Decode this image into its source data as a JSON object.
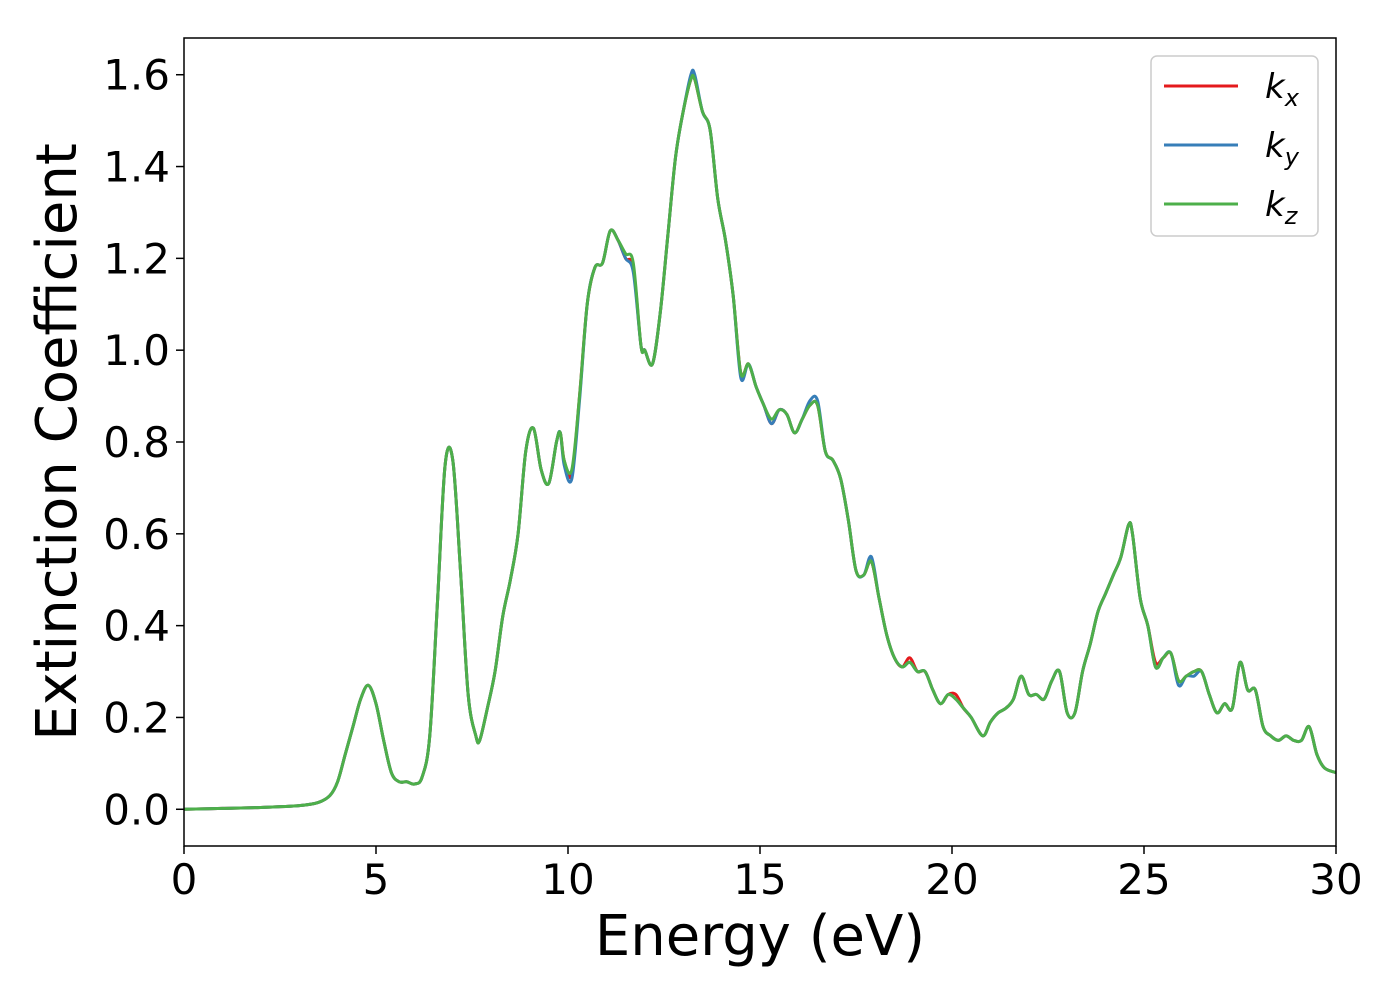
{
  "chart_data": {
    "type": "line",
    "title": "",
    "xlabel": "Energy (eV)",
    "ylabel": "Extinction Coefficient",
    "xlim": [
      0,
      30
    ],
    "ylim": [
      -0.08,
      1.68
    ],
    "xticks": [
      0,
      5,
      10,
      15,
      20,
      25,
      30
    ],
    "yticks": [
      0.0,
      0.2,
      0.4,
      0.6,
      0.8,
      1.0,
      1.2,
      1.4,
      1.6
    ],
    "xtick_labels": [
      "0",
      "5",
      "10",
      "15",
      "20",
      "25",
      "30"
    ],
    "ytick_labels": [
      "0.0",
      "0.2",
      "0.4",
      "0.6",
      "0.8",
      "1.0",
      "1.2",
      "1.4",
      "1.6"
    ],
    "grid": false,
    "legend": {
      "placement": "top-right",
      "entries": [
        {
          "base": "k",
          "sub": "x",
          "color": "#e41a1c"
        },
        {
          "base": "k",
          "sub": "y",
          "color": "#377eb8"
        },
        {
          "base": "k",
          "sub": "z",
          "color": "#4daf4a"
        }
      ]
    },
    "series": [
      {
        "name": "kx",
        "color": "#e41a1c",
        "x": [
          0,
          1,
          2,
          3,
          3.5,
          3.8,
          4.0,
          4.2,
          4.4,
          4.6,
          4.8,
          5.0,
          5.2,
          5.4,
          5.6,
          5.8,
          6.0,
          6.2,
          6.4,
          6.6,
          6.8,
          7.0,
          7.2,
          7.4,
          7.6,
          7.7,
          7.9,
          8.1,
          8.3,
          8.5,
          8.7,
          8.9,
          9.1,
          9.3,
          9.5,
          9.7,
          9.8,
          9.9,
          10.1,
          10.3,
          10.5,
          10.7,
          10.9,
          11.1,
          11.3,
          11.5,
          11.7,
          11.9,
          12.0,
          12.2,
          12.4,
          12.6,
          12.8,
          13.0,
          13.2,
          13.3,
          13.5,
          13.7,
          13.9,
          14.1,
          14.3,
          14.5,
          14.7,
          14.9,
          15.1,
          15.3,
          15.5,
          15.7,
          15.9,
          16.1,
          16.3,
          16.5,
          16.7,
          16.9,
          17.1,
          17.3,
          17.5,
          17.7,
          17.9,
          18.1,
          18.3,
          18.5,
          18.7,
          18.9,
          19.1,
          19.3,
          19.5,
          19.7,
          19.9,
          20.1,
          20.3,
          20.5,
          20.8,
          21.0,
          21.2,
          21.4,
          21.6,
          21.8,
          22.0,
          22.2,
          22.4,
          22.6,
          22.8,
          23.0,
          23.2,
          23.4,
          23.6,
          23.8,
          24.0,
          24.2,
          24.4,
          24.6,
          24.7,
          24.9,
          25.1,
          25.3,
          25.5,
          25.7,
          25.9,
          26.1,
          26.3,
          26.5,
          26.7,
          26.9,
          27.1,
          27.3,
          27.5,
          27.7,
          27.9,
          28.1,
          28.3,
          28.5,
          28.7,
          28.9,
          29.1,
          29.3,
          29.5,
          29.7,
          30.0
        ],
        "y": [
          0.0,
          0.002,
          0.004,
          0.008,
          0.015,
          0.03,
          0.06,
          0.12,
          0.18,
          0.24,
          0.27,
          0.23,
          0.15,
          0.08,
          0.06,
          0.06,
          0.055,
          0.07,
          0.16,
          0.45,
          0.75,
          0.76,
          0.52,
          0.25,
          0.16,
          0.15,
          0.22,
          0.3,
          0.42,
          0.5,
          0.6,
          0.78,
          0.83,
          0.74,
          0.71,
          0.8,
          0.82,
          0.76,
          0.73,
          0.9,
          1.1,
          1.18,
          1.19,
          1.26,
          1.24,
          1.2,
          1.18,
          1.01,
          1.0,
          0.97,
          1.08,
          1.25,
          1.42,
          1.52,
          1.59,
          1.59,
          1.52,
          1.48,
          1.33,
          1.24,
          1.12,
          0.95,
          0.97,
          0.92,
          0.88,
          0.84,
          0.87,
          0.86,
          0.82,
          0.85,
          0.88,
          0.88,
          0.78,
          0.76,
          0.72,
          0.63,
          0.52,
          0.51,
          0.54,
          0.46,
          0.38,
          0.33,
          0.31,
          0.33,
          0.3,
          0.3,
          0.26,
          0.23,
          0.25,
          0.25,
          0.22,
          0.2,
          0.16,
          0.19,
          0.21,
          0.22,
          0.24,
          0.29,
          0.25,
          0.25,
          0.24,
          0.28,
          0.3,
          0.21,
          0.21,
          0.3,
          0.36,
          0.43,
          0.47,
          0.51,
          0.55,
          0.62,
          0.6,
          0.46,
          0.4,
          0.32,
          0.33,
          0.34,
          0.28,
          0.29,
          0.3,
          0.3,
          0.25,
          0.21,
          0.23,
          0.22,
          0.32,
          0.26,
          0.26,
          0.18,
          0.16,
          0.15,
          0.16,
          0.15,
          0.15,
          0.18,
          0.12,
          0.09,
          0.08
        ]
      },
      {
        "name": "ky",
        "color": "#377eb8",
        "x": [
          0,
          1,
          2,
          3,
          3.5,
          3.8,
          4.0,
          4.2,
          4.4,
          4.6,
          4.8,
          5.0,
          5.2,
          5.4,
          5.6,
          5.8,
          6.0,
          6.2,
          6.4,
          6.6,
          6.8,
          7.0,
          7.2,
          7.4,
          7.6,
          7.7,
          7.9,
          8.1,
          8.3,
          8.5,
          8.7,
          8.9,
          9.1,
          9.3,
          9.5,
          9.7,
          9.8,
          9.9,
          10.1,
          10.3,
          10.5,
          10.7,
          10.9,
          11.1,
          11.3,
          11.5,
          11.7,
          11.9,
          12.0,
          12.2,
          12.4,
          12.6,
          12.8,
          13.0,
          13.2,
          13.3,
          13.5,
          13.7,
          13.9,
          14.1,
          14.3,
          14.5,
          14.7,
          14.9,
          15.1,
          15.3,
          15.5,
          15.7,
          15.9,
          16.1,
          16.3,
          16.5,
          16.7,
          16.9,
          17.1,
          17.3,
          17.5,
          17.7,
          17.9,
          18.1,
          18.3,
          18.5,
          18.7,
          18.9,
          19.1,
          19.3,
          19.5,
          19.7,
          19.9,
          20.1,
          20.3,
          20.5,
          20.8,
          21.0,
          21.2,
          21.4,
          21.6,
          21.8,
          22.0,
          22.2,
          22.4,
          22.6,
          22.8,
          23.0,
          23.2,
          23.4,
          23.6,
          23.8,
          24.0,
          24.2,
          24.4,
          24.6,
          24.7,
          24.9,
          25.1,
          25.3,
          25.5,
          25.7,
          25.9,
          26.1,
          26.3,
          26.5,
          26.7,
          26.9,
          27.1,
          27.3,
          27.5,
          27.7,
          27.9,
          28.1,
          28.3,
          28.5,
          28.7,
          28.9,
          29.1,
          29.3,
          29.5,
          29.7,
          30.0
        ],
        "y": [
          0.0,
          0.002,
          0.004,
          0.008,
          0.015,
          0.03,
          0.06,
          0.12,
          0.18,
          0.24,
          0.27,
          0.23,
          0.15,
          0.08,
          0.06,
          0.06,
          0.055,
          0.07,
          0.16,
          0.45,
          0.75,
          0.76,
          0.52,
          0.25,
          0.16,
          0.15,
          0.22,
          0.3,
          0.42,
          0.5,
          0.6,
          0.78,
          0.83,
          0.74,
          0.71,
          0.8,
          0.82,
          0.75,
          0.72,
          0.89,
          1.1,
          1.18,
          1.19,
          1.26,
          1.24,
          1.2,
          1.17,
          1.01,
          1.0,
          0.97,
          1.08,
          1.25,
          1.42,
          1.52,
          1.6,
          1.6,
          1.52,
          1.48,
          1.33,
          1.24,
          1.12,
          0.94,
          0.97,
          0.92,
          0.88,
          0.84,
          0.87,
          0.86,
          0.82,
          0.85,
          0.89,
          0.89,
          0.78,
          0.76,
          0.72,
          0.63,
          0.52,
          0.51,
          0.55,
          0.46,
          0.38,
          0.33,
          0.31,
          0.32,
          0.3,
          0.3,
          0.26,
          0.23,
          0.25,
          0.24,
          0.22,
          0.2,
          0.16,
          0.19,
          0.21,
          0.22,
          0.24,
          0.29,
          0.25,
          0.25,
          0.24,
          0.28,
          0.3,
          0.21,
          0.21,
          0.3,
          0.36,
          0.43,
          0.47,
          0.51,
          0.55,
          0.62,
          0.6,
          0.46,
          0.4,
          0.31,
          0.33,
          0.34,
          0.27,
          0.29,
          0.29,
          0.3,
          0.25,
          0.21,
          0.23,
          0.22,
          0.32,
          0.26,
          0.26,
          0.18,
          0.16,
          0.15,
          0.16,
          0.15,
          0.15,
          0.18,
          0.12,
          0.09,
          0.08
        ]
      },
      {
        "name": "kz",
        "color": "#4daf4a",
        "x": [
          0,
          1,
          2,
          3,
          3.5,
          3.8,
          4.0,
          4.2,
          4.4,
          4.6,
          4.8,
          5.0,
          5.2,
          5.4,
          5.6,
          5.8,
          6.0,
          6.2,
          6.4,
          6.6,
          6.8,
          7.0,
          7.2,
          7.4,
          7.6,
          7.7,
          7.9,
          8.1,
          8.3,
          8.5,
          8.7,
          8.9,
          9.1,
          9.3,
          9.5,
          9.7,
          9.8,
          9.9,
          10.1,
          10.3,
          10.5,
          10.7,
          10.9,
          11.1,
          11.3,
          11.5,
          11.7,
          11.9,
          12.0,
          12.2,
          12.4,
          12.6,
          12.8,
          13.0,
          13.2,
          13.3,
          13.5,
          13.7,
          13.9,
          14.1,
          14.3,
          14.5,
          14.7,
          14.9,
          15.1,
          15.3,
          15.5,
          15.7,
          15.9,
          16.1,
          16.3,
          16.5,
          16.7,
          16.9,
          17.1,
          17.3,
          17.5,
          17.7,
          17.9,
          18.1,
          18.3,
          18.5,
          18.7,
          18.9,
          19.1,
          19.3,
          19.5,
          19.7,
          19.9,
          20.1,
          20.3,
          20.5,
          20.8,
          21.0,
          21.2,
          21.4,
          21.6,
          21.8,
          22.0,
          22.2,
          22.4,
          22.6,
          22.8,
          23.0,
          23.2,
          23.4,
          23.6,
          23.8,
          24.0,
          24.2,
          24.4,
          24.6,
          24.7,
          24.9,
          25.1,
          25.3,
          25.5,
          25.7,
          25.9,
          26.1,
          26.3,
          26.5,
          26.7,
          26.9,
          27.1,
          27.3,
          27.5,
          27.7,
          27.9,
          28.1,
          28.3,
          28.5,
          28.7,
          28.9,
          29.1,
          29.3,
          29.5,
          29.7,
          30.0
        ],
        "y": [
          0.0,
          0.002,
          0.004,
          0.008,
          0.015,
          0.03,
          0.06,
          0.12,
          0.18,
          0.24,
          0.27,
          0.23,
          0.15,
          0.08,
          0.06,
          0.06,
          0.055,
          0.07,
          0.16,
          0.45,
          0.75,
          0.76,
          0.52,
          0.25,
          0.16,
          0.15,
          0.22,
          0.3,
          0.42,
          0.5,
          0.6,
          0.78,
          0.83,
          0.74,
          0.71,
          0.8,
          0.82,
          0.76,
          0.74,
          0.9,
          1.1,
          1.18,
          1.19,
          1.26,
          1.24,
          1.21,
          1.19,
          1.01,
          1.0,
          0.97,
          1.08,
          1.25,
          1.42,
          1.52,
          1.59,
          1.59,
          1.52,
          1.48,
          1.33,
          1.24,
          1.12,
          0.95,
          0.97,
          0.92,
          0.88,
          0.85,
          0.87,
          0.86,
          0.82,
          0.85,
          0.88,
          0.88,
          0.78,
          0.76,
          0.72,
          0.63,
          0.52,
          0.51,
          0.54,
          0.46,
          0.38,
          0.33,
          0.31,
          0.32,
          0.3,
          0.3,
          0.26,
          0.23,
          0.25,
          0.24,
          0.22,
          0.2,
          0.16,
          0.19,
          0.21,
          0.22,
          0.24,
          0.29,
          0.25,
          0.25,
          0.24,
          0.28,
          0.3,
          0.21,
          0.21,
          0.3,
          0.36,
          0.43,
          0.47,
          0.51,
          0.55,
          0.62,
          0.6,
          0.46,
          0.4,
          0.31,
          0.33,
          0.34,
          0.28,
          0.29,
          0.3,
          0.3,
          0.25,
          0.21,
          0.23,
          0.22,
          0.32,
          0.26,
          0.26,
          0.18,
          0.16,
          0.15,
          0.16,
          0.15,
          0.15,
          0.18,
          0.12,
          0.09,
          0.08
        ]
      }
    ]
  }
}
